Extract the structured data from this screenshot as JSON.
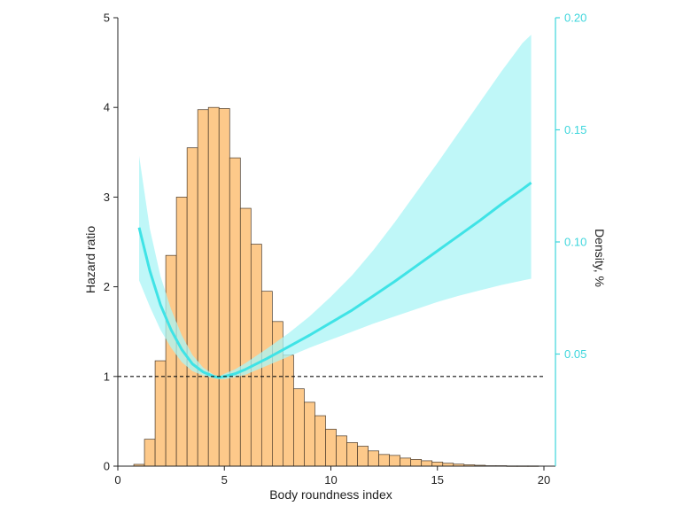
{
  "chart_data": {
    "type": "line",
    "xlabel": "Body  roundness index",
    "ylabel": "Hazard ratio",
    "y2label": "Density, %",
    "xlim": [
      0,
      20
    ],
    "ylim": [
      0,
      5
    ],
    "y2lim": [
      0,
      0.2
    ],
    "xticks": [
      "0",
      "5",
      "10",
      "15",
      "20"
    ],
    "yticks": [
      "0",
      "1",
      "2",
      "3",
      "4",
      "5"
    ],
    "y2ticks": [
      "0.05",
      "0.10",
      "0.15",
      "0.20"
    ],
    "reference_line_y": 1,
    "grid": false,
    "colors": {
      "bars_fill": "#FDC98A",
      "bars_stroke": "#4A3A2A",
      "curve": "#3FE3E6",
      "band": "#A9F4F6",
      "right_axis": "#3DD6DC",
      "axis": "#222222"
    },
    "histogram": {
      "bin_width": 0.5,
      "bins": [
        {
          "x0": 0.75,
          "density": 0.0008
        },
        {
          "x0": 1.25,
          "density": 0.012
        },
        {
          "x0": 1.75,
          "density": 0.047
        },
        {
          "x0": 2.25,
          "density": 0.094
        },
        {
          "x0": 2.75,
          "density": 0.12
        },
        {
          "x0": 3.25,
          "density": 0.142
        },
        {
          "x0": 3.75,
          "density": 0.159
        },
        {
          "x0": 4.25,
          "density": 0.16
        },
        {
          "x0": 4.75,
          "density": 0.1595
        },
        {
          "x0": 5.25,
          "density": 0.1375
        },
        {
          "x0": 5.75,
          "density": 0.115
        },
        {
          "x0": 6.25,
          "density": 0.099
        },
        {
          "x0": 6.75,
          "density": 0.078
        },
        {
          "x0": 7.25,
          "density": 0.0645
        },
        {
          "x0": 7.75,
          "density": 0.0495
        },
        {
          "x0": 8.25,
          "density": 0.0345
        },
        {
          "x0": 8.75,
          "density": 0.0285
        },
        {
          "x0": 9.25,
          "density": 0.0225
        },
        {
          "x0": 9.75,
          "density": 0.0165
        },
        {
          "x0": 10.25,
          "density": 0.0135
        },
        {
          "x0": 10.75,
          "density": 0.0105
        },
        {
          "x0": 11.25,
          "density": 0.0089
        },
        {
          "x0": 11.75,
          "density": 0.0068
        },
        {
          "x0": 12.25,
          "density": 0.0052
        },
        {
          "x0": 12.75,
          "density": 0.0048
        },
        {
          "x0": 13.25,
          "density": 0.0036
        },
        {
          "x0": 13.75,
          "density": 0.003
        },
        {
          "x0": 14.25,
          "density": 0.0024
        },
        {
          "x0": 14.75,
          "density": 0.0018
        },
        {
          "x0": 15.25,
          "density": 0.0013
        },
        {
          "x0": 15.75,
          "density": 0.0009
        },
        {
          "x0": 16.25,
          "density": 0.0006
        },
        {
          "x0": 16.75,
          "density": 0.0004
        },
        {
          "x0": 17.25,
          "density": 0.0002
        },
        {
          "x0": 17.75,
          "density": 0.0002
        },
        {
          "x0": 18.25,
          "density": 0.0001
        },
        {
          "x0": 18.75,
          "density": 0.0001
        },
        {
          "x0": 19.25,
          "density": 0.0001
        }
      ]
    },
    "hazard_ratio_curve": {
      "x": [
        1.0,
        1.5,
        2.0,
        2.5,
        3.0,
        3.5,
        4.0,
        4.5,
        4.75,
        5.0,
        5.5,
        6.0,
        7.0,
        8.0,
        9.0,
        10.0,
        11.0,
        12.0,
        13.0,
        14.0,
        15.0,
        16.0,
        17.0,
        18.0,
        19.0,
        19.4
      ],
      "hr": [
        2.66,
        2.18,
        1.8,
        1.52,
        1.3,
        1.14,
        1.05,
        1.0,
        0.99,
        1.0,
        1.03,
        1.08,
        1.2,
        1.33,
        1.46,
        1.6,
        1.74,
        1.9,
        2.06,
        2.23,
        2.4,
        2.57,
        2.74,
        2.92,
        3.09,
        3.16
      ],
      "lower": [
        2.07,
        1.78,
        1.52,
        1.32,
        1.16,
        1.06,
        1.01,
        0.98,
        0.97,
        0.97,
        0.99,
        1.02,
        1.12,
        1.22,
        1.32,
        1.41,
        1.5,
        1.59,
        1.67,
        1.75,
        1.83,
        1.9,
        1.96,
        2.02,
        2.07,
        2.09
      ],
      "upper": [
        3.46,
        2.65,
        2.12,
        1.75,
        1.46,
        1.24,
        1.1,
        1.02,
        1.0,
        1.03,
        1.08,
        1.15,
        1.31,
        1.48,
        1.67,
        1.89,
        2.13,
        2.41,
        2.72,
        3.05,
        3.38,
        3.72,
        4.06,
        4.4,
        4.72,
        4.81
      ]
    }
  }
}
